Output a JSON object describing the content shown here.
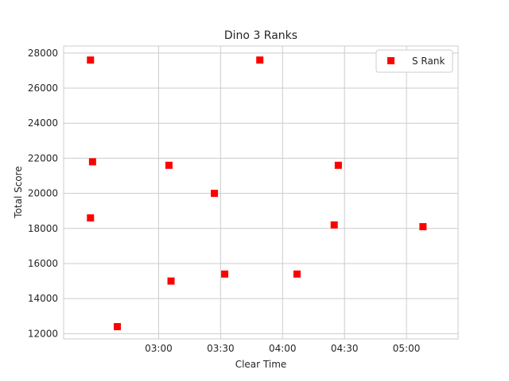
{
  "chart_data": {
    "type": "scatter",
    "title": "Dino 3 Ranks",
    "xlabel": "Clear Time",
    "ylabel": "Total Score",
    "x_unit": "mm:ss",
    "xlim": [
      "02:14",
      "05:25"
    ],
    "ylim": [
      11700,
      28400
    ],
    "xticks": [
      "03:00",
      "03:30",
      "04:00",
      "04:30",
      "05:00"
    ],
    "yticks": [
      12000,
      14000,
      16000,
      18000,
      20000,
      22000,
      24000,
      26000,
      28000
    ],
    "grid": true,
    "legend_position": "top-right",
    "series": [
      {
        "name": "S Rank",
        "color": "#ff0000",
        "marker": "square",
        "points": [
          {
            "x": "02:27",
            "y": 27600
          },
          {
            "x": "02:28",
            "y": 21800
          },
          {
            "x": "02:27",
            "y": 18600
          },
          {
            "x": "02:40",
            "y": 12400
          },
          {
            "x": "03:05",
            "y": 21600
          },
          {
            "x": "03:06",
            "y": 15000
          },
          {
            "x": "03:27",
            "y": 20000
          },
          {
            "x": "03:32",
            "y": 15400
          },
          {
            "x": "03:49",
            "y": 27600
          },
          {
            "x": "04:07",
            "y": 15400
          },
          {
            "x": "04:25",
            "y": 18200
          },
          {
            "x": "04:27",
            "y": 21600
          },
          {
            "x": "05:08",
            "y": 18100
          }
        ]
      }
    ]
  }
}
